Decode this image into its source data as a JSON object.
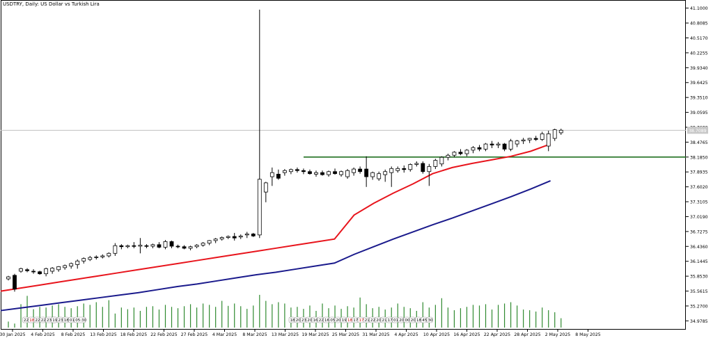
{
  "title": "USDTRY, Daily:  US Dollar vs Turkish Lira",
  "current_price_label": "38.7089",
  "colors": {
    "background": "#ffffff",
    "axis": "#000000",
    "grid_line": "#c0c0c0",
    "candle_up_fill": "#ffffff",
    "candle_down_fill": "#000000",
    "candle_border": "#000000",
    "ma_fast": "#e8141c",
    "ma_slow": "#1a1a8c",
    "horizontal_level": "#1f6f1f",
    "volume": "#2f8a2f",
    "label_box": "#ffffff",
    "price_tag_bg": "#c8c8c8"
  },
  "chart_data": {
    "type": "candlestick",
    "title": "USDTRY, Daily:  US Dollar vs Turkish Lira",
    "ylim": [
      34.82,
      41.15
    ],
    "y_ticks": [
      "41.1000",
      "40.8085",
      "40.5170",
      "40.2255",
      "39.9340",
      "39.6425",
      "39.3510",
      "39.0595",
      "38.7680",
      "38.4765",
      "38.1850",
      "37.8935",
      "37.6020",
      "37.3105",
      "37.0190",
      "36.7275",
      "36.4360",
      "36.1445",
      "35.8530",
      "35.5615",
      "35.2700",
      "34.9785"
    ],
    "x_labels": [
      "30 Jan 2025",
      "4 Feb 2025",
      "8 Feb 2025",
      "13 Feb 2025",
      "18 Feb 2025",
      "22 Feb 2025",
      "27 Feb 2025",
      "4 Mar 2025",
      "8 Mar 2025",
      "13 Mar 2025",
      "19 Mar 2025",
      "25 Mar 2025",
      "31 Mar 2025",
      "4 Apr 2025",
      "10 Apr 2025",
      "16 Apr 2025",
      "22 Apr 2025",
      "28 Apr 2025",
      "2 May 2025",
      "8 May 2025"
    ],
    "current_price": 38.7089,
    "horizontal_level": 38.185,
    "ohlc": [
      [
        35.8,
        35.86,
        35.77,
        35.84
      ],
      [
        35.87,
        35.9,
        35.55,
        35.6
      ],
      [
        35.95,
        36.02,
        35.92,
        36.0
      ],
      [
        35.98,
        36.01,
        35.93,
        35.96
      ],
      [
        35.95,
        35.99,
        35.9,
        35.94
      ],
      [
        35.94,
        35.96,
        35.88,
        35.9
      ],
      [
        35.9,
        36.02,
        35.85,
        36.0
      ],
      [
        35.95,
        36.03,
        35.9,
        36.01
      ],
      [
        35.98,
        36.05,
        35.94,
        36.04
      ],
      [
        36.02,
        36.08,
        35.98,
        36.06
      ],
      [
        36.05,
        36.12,
        36.0,
        36.1
      ],
      [
        36.08,
        36.18,
        36.0,
        36.15
      ],
      [
        36.15,
        36.22,
        36.1,
        36.2
      ],
      [
        36.18,
        36.25,
        36.15,
        36.22
      ],
      [
        36.22,
        36.26,
        36.18,
        36.23
      ],
      [
        36.23,
        36.28,
        36.2,
        36.25
      ],
      [
        36.25,
        36.32,
        36.22,
        36.3
      ],
      [
        36.3,
        36.5,
        36.25,
        36.45
      ],
      [
        36.45,
        36.48,
        36.38,
        36.43
      ],
      [
        36.43,
        36.47,
        36.4,
        36.45
      ],
      [
        36.45,
        36.52,
        36.4,
        36.44
      ],
      [
        36.44,
        36.6,
        36.3,
        36.46
      ],
      [
        36.45,
        36.48,
        36.4,
        36.44
      ],
      [
        36.44,
        36.49,
        36.4,
        36.47
      ],
      [
        36.47,
        36.52,
        36.4,
        36.42
      ],
      [
        36.42,
        36.56,
        36.38,
        36.53
      ],
      [
        36.53,
        36.55,
        36.4,
        36.44
      ],
      [
        36.44,
        36.47,
        36.4,
        36.43
      ],
      [
        36.43,
        36.46,
        36.38,
        36.4
      ],
      [
        36.4,
        36.45,
        36.36,
        36.43
      ],
      [
        36.43,
        36.48,
        36.4,
        36.46
      ],
      [
        36.46,
        36.52,
        36.43,
        36.5
      ],
      [
        36.5,
        36.56,
        36.46,
        36.55
      ],
      [
        36.55,
        36.6,
        36.5,
        36.58
      ],
      [
        36.58,
        36.63,
        36.55,
        36.61
      ],
      [
        36.61,
        36.65,
        36.58,
        36.63
      ],
      [
        36.63,
        36.7,
        36.55,
        36.6
      ],
      [
        36.62,
        36.67,
        36.58,
        36.64
      ],
      [
        36.66,
        36.72,
        36.6,
        36.68
      ],
      [
        36.68,
        36.7,
        36.62,
        36.64
      ],
      [
        36.66,
        41.07,
        36.6,
        37.75
      ],
      [
        37.5,
        37.7,
        37.3,
        37.68
      ],
      [
        37.8,
        37.98,
        37.62,
        37.88
      ],
      [
        37.85,
        37.94,
        37.74,
        37.77
      ],
      [
        37.88,
        37.95,
        37.82,
        37.92
      ],
      [
        37.9,
        37.96,
        37.85,
        37.94
      ],
      [
        37.94,
        37.98,
        37.88,
        37.92
      ],
      [
        37.92,
        37.96,
        37.85,
        37.9
      ],
      [
        37.9,
        37.94,
        37.84,
        37.86
      ],
      [
        37.85,
        37.92,
        37.8,
        37.88
      ],
      [
        37.88,
        37.92,
        37.82,
        37.84
      ],
      [
        37.84,
        37.92,
        37.8,
        37.9
      ],
      [
        37.9,
        37.96,
        37.84,
        37.86
      ],
      [
        37.84,
        37.92,
        37.8,
        37.9
      ],
      [
        37.8,
        37.95,
        37.76,
        37.92
      ],
      [
        37.88,
        37.98,
        37.82,
        37.95
      ],
      [
        37.95,
        38.0,
        37.86,
        37.9
      ],
      [
        37.95,
        38.2,
        37.6,
        37.8
      ],
      [
        37.8,
        37.9,
        37.74,
        37.88
      ],
      [
        37.76,
        37.9,
        37.72,
        37.86
      ],
      [
        37.84,
        37.94,
        37.7,
        37.9
      ],
      [
        37.88,
        38.0,
        37.6,
        37.96
      ],
      [
        37.92,
        38.0,
        37.88,
        37.96
      ],
      [
        37.96,
        38.02,
        37.88,
        37.94
      ],
      [
        37.94,
        38.06,
        37.9,
        38.04
      ],
      [
        38.04,
        38.1,
        38.0,
        38.06
      ],
      [
        38.06,
        38.1,
        37.86,
        37.9
      ],
      [
        37.9,
        38.05,
        37.62,
        38.0
      ],
      [
        38.0,
        38.15,
        37.95,
        38.12
      ],
      [
        38.05,
        38.2,
        38.0,
        38.18
      ],
      [
        38.18,
        38.25,
        38.12,
        38.22
      ],
      [
        38.22,
        38.3,
        38.18,
        38.28
      ],
      [
        38.28,
        38.34,
        38.22,
        38.25
      ],
      [
        38.25,
        38.34,
        38.2,
        38.32
      ],
      [
        38.32,
        38.4,
        38.26,
        38.37
      ],
      [
        38.37,
        38.42,
        38.3,
        38.34
      ],
      [
        38.34,
        38.46,
        38.3,
        38.44
      ],
      [
        38.44,
        38.5,
        38.36,
        38.42
      ],
      [
        38.42,
        38.48,
        38.36,
        38.44
      ],
      [
        38.44,
        38.46,
        38.3,
        38.34
      ],
      [
        38.34,
        38.54,
        38.3,
        38.5
      ],
      [
        38.44,
        38.52,
        38.38,
        38.5
      ],
      [
        38.5,
        38.56,
        38.44,
        38.52
      ],
      [
        38.52,
        38.56,
        38.46,
        38.55
      ],
      [
        38.55,
        38.6,
        38.5,
        38.53
      ],
      [
        38.53,
        38.68,
        38.5,
        38.64
      ],
      [
        38.4,
        38.7,
        38.3,
        38.64
      ],
      [
        38.55,
        38.74,
        38.5,
        38.72
      ],
      [
        38.66,
        38.74,
        38.62,
        38.71
      ]
    ],
    "ma_fast": [
      35.56,
      35.62,
      35.68,
      35.74,
      35.8,
      35.86,
      35.92,
      35.98,
      36.04,
      36.1,
      36.16,
      36.22,
      36.28,
      36.34,
      36.4,
      36.46,
      36.52,
      36.58,
      37.05,
      37.28,
      37.48,
      37.66,
      37.86,
      37.98,
      38.06,
      38.13,
      38.2,
      38.3,
      38.44
    ],
    "ma_slow": [
      35.18,
      35.23,
      35.28,
      35.33,
      35.38,
      35.43,
      35.48,
      35.53,
      35.59,
      35.65,
      35.7,
      35.76,
      35.82,
      35.88,
      35.93,
      35.99,
      36.05,
      36.11,
      36.28,
      36.43,
      36.58,
      36.72,
      36.86,
      36.99,
      37.13,
      37.27,
      37.41,
      37.56,
      37.72
    ],
    "volume": [
      0.18,
      0.12,
      0.7,
      0.95,
      0.55,
      0.62,
      0.6,
      0.66,
      0.7,
      0.62,
      0.58,
      0.64,
      0.72,
      0.68,
      0.76,
      0.62,
      0.82,
      0.42,
      0.6,
      0.55,
      0.6,
      0.5,
      0.62,
      0.64,
      0.54,
      0.68,
      0.62,
      0.58,
      0.64,
      0.7,
      0.6,
      0.72,
      0.68,
      0.62,
      0.8,
      0.65,
      0.72,
      0.64,
      0.56,
      0.66,
      0.98,
      0.8,
      0.7,
      0.76,
      0.72,
      0.6,
      0.62,
      0.56,
      0.66,
      0.5,
      0.72,
      0.58,
      0.66,
      0.56,
      0.64,
      0.6,
      0.9,
      0.7,
      0.58,
      0.62,
      0.54,
      0.6,
      0.72,
      0.62,
      0.58,
      0.5,
      0.76,
      0.6,
      0.68,
      0.88,
      0.6,
      0.52,
      0.58,
      0.62,
      0.68,
      0.66,
      0.7,
      0.54,
      0.68,
      0.72,
      0.76,
      0.66,
      0.54,
      0.52,
      0.48,
      0.6,
      0.52,
      0.46,
      0.28
    ],
    "grid": false,
    "legend": "none"
  },
  "time_labels": [
    "22:",
    "18:",
    "22:",
    "22:",
    "23:30",
    "19:",
    "23:",
    "18:",
    "01:",
    "05:30",
    "18:",
    "20:",
    "23:",
    "20:",
    "16:",
    "22:",
    "16:",
    "05:",
    "20:",
    "19:",
    "18:",
    "17:",
    "17:",
    "21:",
    "22:",
    "20:",
    "21:",
    "17:",
    "01:",
    "20:",
    "00:",
    "20:",
    "18:",
    "45:",
    "30"
  ],
  "time_labels_highlight": [
    1,
    20,
    22
  ]
}
